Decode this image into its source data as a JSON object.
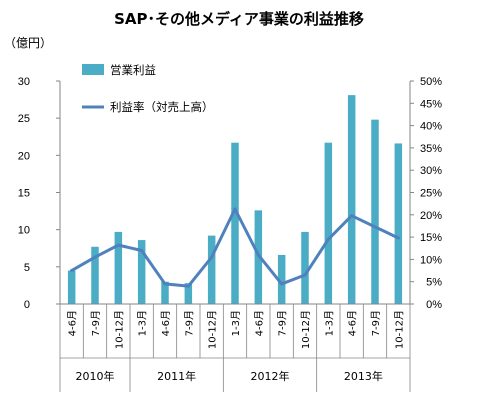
{
  "chart_data": {
    "type": "bar+line",
    "title": "SAP･その他メディア事業の利益推移",
    "y_unit_label": "（億円）",
    "categories": [
      "4-6月",
      "7-9月",
      "10-12月",
      "1-3月",
      "4-6月",
      "7-9月",
      "10-12月",
      "1-3月",
      "4-6月",
      "7-9月",
      "10-12月",
      "1-3月",
      "4-6月",
      "7-9月",
      "10-12月"
    ],
    "year_groups": [
      {
        "label": "2010年",
        "count": 3
      },
      {
        "label": "2011年",
        "count": 4
      },
      {
        "label": "2012年",
        "count": 4
      },
      {
        "label": "2013年",
        "count": 4
      }
    ],
    "series": [
      {
        "name": "営業利益",
        "kind": "bar",
        "axis": "left",
        "color": "#4bacc6",
        "values": [
          4.5,
          7.7,
          9.7,
          8.6,
          3.0,
          2.8,
          9.2,
          21.7,
          12.6,
          6.6,
          9.7,
          21.7,
          28.1,
          24.8,
          21.6
        ]
      },
      {
        "name": "利益率（対売上高）",
        "kind": "line",
        "axis": "right",
        "color": "#4f81bd",
        "values": [
          7.5,
          10.5,
          13.2,
          12.0,
          4.5,
          4.0,
          10.5,
          21.3,
          11.0,
          4.5,
          6.5,
          14.5,
          19.8,
          17.3,
          14.8
        ]
      }
    ],
    "y_left": {
      "min": 0,
      "max": 30,
      "step": 5,
      "ticks": [
        "0",
        "5",
        "10",
        "15",
        "20",
        "25",
        "30"
      ]
    },
    "y_right": {
      "min": 0,
      "max": 50,
      "step": 5,
      "ticks": [
        "0%",
        "5%",
        "10%",
        "15%",
        "20%",
        "25%",
        "30%",
        "35%",
        "40%",
        "45%",
        "50%"
      ]
    },
    "legend_placement": "top-left",
    "grid": false
  }
}
